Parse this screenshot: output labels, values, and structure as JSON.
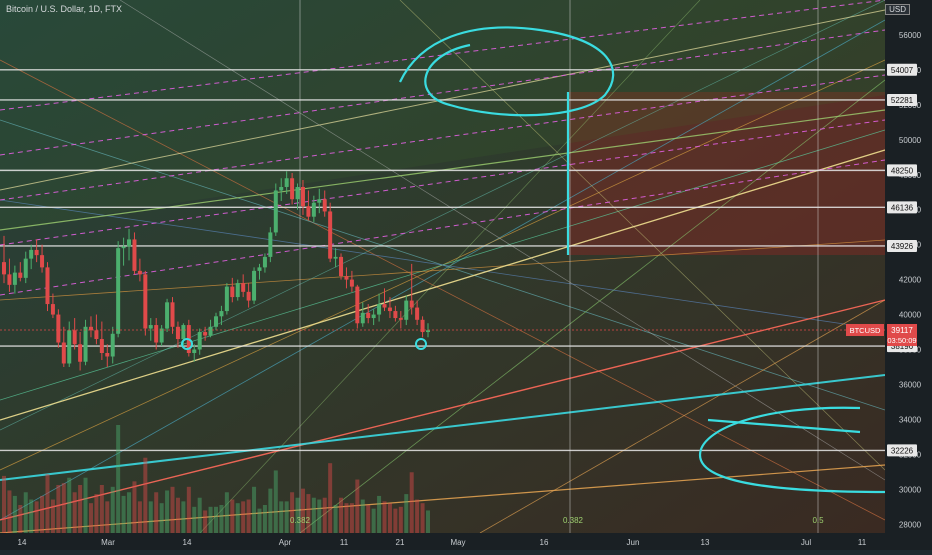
{
  "header": {
    "symbol_line": "Bitcoin / U.S. Dollar, 1D, FTX",
    "currency_button": "USD"
  },
  "chart_data": {
    "type": "candlestick",
    "title": "Bitcoin / U.S. Dollar, 1D, FTX",
    "ylim": [
      27500,
      58000
    ],
    "y_ticks": [
      28000,
      30000,
      32000,
      34000,
      36000,
      38000,
      40000,
      42000,
      44000,
      46000,
      48000,
      50000,
      52000,
      54000,
      56000
    ],
    "x_tick_labels": [
      "14",
      "Mar",
      "14",
      "Apr",
      "11",
      "21",
      "May",
      "16",
      "Jun",
      "13",
      "Jul",
      "11"
    ],
    "price_labels": [
      {
        "value": 54007,
        "text": "54007"
      },
      {
        "value": 52281,
        "text": "52281"
      },
      {
        "value": 48250,
        "text": "48250"
      },
      {
        "value": 46136,
        "text": "46136"
      },
      {
        "value": 43926,
        "text": "43926"
      },
      {
        "value": 38196,
        "text": "38196"
      },
      {
        "value": 32226,
        "text": "32226"
      }
    ],
    "last_price": {
      "symbol": "BTCUSD",
      "value": 39117,
      "countdown": "03:50:09"
    },
    "fib_labels": [
      "0.382",
      "0.382",
      "0.5"
    ],
    "candles": [
      {
        "o": 43000,
        "h": 44500,
        "l": 41800,
        "c": 42300
      },
      {
        "o": 42300,
        "h": 43200,
        "l": 41300,
        "c": 41700
      },
      {
        "o": 41700,
        "h": 42800,
        "l": 41200,
        "c": 42400
      },
      {
        "o": 42400,
        "h": 43000,
        "l": 41900,
        "c": 42100
      },
      {
        "o": 42100,
        "h": 43600,
        "l": 41800,
        "c": 43200
      },
      {
        "o": 43200,
        "h": 44000,
        "l": 42600,
        "c": 43700
      },
      {
        "o": 43700,
        "h": 44300,
        "l": 43000,
        "c": 43400
      },
      {
        "o": 43400,
        "h": 44000,
        "l": 42400,
        "c": 42700
      },
      {
        "o": 42700,
        "h": 43000,
        "l": 40200,
        "c": 40600
      },
      {
        "o": 40600,
        "h": 41200,
        "l": 39800,
        "c": 40000
      },
      {
        "o": 40000,
        "h": 40300,
        "l": 38100,
        "c": 38400
      },
      {
        "o": 38400,
        "h": 39300,
        "l": 37000,
        "c": 37200
      },
      {
        "o": 37200,
        "h": 39600,
        "l": 37000,
        "c": 39100
      },
      {
        "o": 39100,
        "h": 39800,
        "l": 38000,
        "c": 38300
      },
      {
        "o": 38300,
        "h": 39000,
        "l": 36800,
        "c": 37300
      },
      {
        "o": 37300,
        "h": 39700,
        "l": 37100,
        "c": 39300
      },
      {
        "o": 39300,
        "h": 39900,
        "l": 38700,
        "c": 39100
      },
      {
        "o": 39100,
        "h": 40000,
        "l": 38300,
        "c": 38600
      },
      {
        "o": 38600,
        "h": 39600,
        "l": 37400,
        "c": 37800
      },
      {
        "o": 37800,
        "h": 38300,
        "l": 37000,
        "c": 37600
      },
      {
        "o": 37600,
        "h": 39300,
        "l": 37200,
        "c": 38900
      },
      {
        "o": 38900,
        "h": 44200,
        "l": 38700,
        "c": 43800
      },
      {
        "o": 43800,
        "h": 44400,
        "l": 42800,
        "c": 43900
      },
      {
        "o": 43900,
        "h": 44900,
        "l": 43100,
        "c": 44300
      },
      {
        "o": 44300,
        "h": 44700,
        "l": 42300,
        "c": 42500
      },
      {
        "o": 42500,
        "h": 43200,
        "l": 41900,
        "c": 42300
      },
      {
        "o": 42300,
        "h": 42500,
        "l": 38800,
        "c": 39200
      },
      {
        "o": 39200,
        "h": 39800,
        "l": 38500,
        "c": 39400
      },
      {
        "o": 39400,
        "h": 39800,
        "l": 38000,
        "c": 38400
      },
      {
        "o": 38400,
        "h": 39400,
        "l": 38200,
        "c": 39200
      },
      {
        "o": 39200,
        "h": 40900,
        "l": 39000,
        "c": 40700
      },
      {
        "o": 40700,
        "h": 41000,
        "l": 38900,
        "c": 39300
      },
      {
        "o": 39300,
        "h": 39600,
        "l": 38100,
        "c": 38600
      },
      {
        "o": 38600,
        "h": 39500,
        "l": 38200,
        "c": 39400
      },
      {
        "o": 39400,
        "h": 39700,
        "l": 37600,
        "c": 37800
      },
      {
        "o": 37800,
        "h": 38300,
        "l": 37300,
        "c": 38000
      },
      {
        "o": 38000,
        "h": 39200,
        "l": 37700,
        "c": 39000
      },
      {
        "o": 39000,
        "h": 39300,
        "l": 38500,
        "c": 38800
      },
      {
        "o": 38800,
        "h": 39700,
        "l": 38700,
        "c": 39300
      },
      {
        "o": 39300,
        "h": 40100,
        "l": 39100,
        "c": 39900
      },
      {
        "o": 39900,
        "h": 40500,
        "l": 39400,
        "c": 40200
      },
      {
        "o": 40200,
        "h": 41800,
        "l": 40000,
        "c": 41600
      },
      {
        "o": 41600,
        "h": 42100,
        "l": 40700,
        "c": 41000
      },
      {
        "o": 41000,
        "h": 42000,
        "l": 40800,
        "c": 41800
      },
      {
        "o": 41800,
        "h": 42300,
        "l": 41000,
        "c": 41300
      },
      {
        "o": 41300,
        "h": 41800,
        "l": 40400,
        "c": 40800
      },
      {
        "o": 40800,
        "h": 42700,
        "l": 40600,
        "c": 42500
      },
      {
        "o": 42500,
        "h": 42900,
        "l": 42000,
        "c": 42700
      },
      {
        "o": 42700,
        "h": 43500,
        "l": 42400,
        "c": 43300
      },
      {
        "o": 43300,
        "h": 45000,
        "l": 43000,
        "c": 44700
      },
      {
        "o": 44700,
        "h": 47500,
        "l": 44500,
        "c": 47100
      },
      {
        "o": 47100,
        "h": 47800,
        "l": 46500,
        "c": 47300
      },
      {
        "o": 47300,
        "h": 48200,
        "l": 46900,
        "c": 47800
      },
      {
        "o": 47800,
        "h": 48100,
        "l": 46300,
        "c": 46600
      },
      {
        "o": 46600,
        "h": 47500,
        "l": 46000,
        "c": 47300
      },
      {
        "o": 47300,
        "h": 47700,
        "l": 45700,
        "c": 46200
      },
      {
        "o": 46200,
        "h": 47100,
        "l": 45400,
        "c": 45600
      },
      {
        "o": 45600,
        "h": 46800,
        "l": 45300,
        "c": 46400
      },
      {
        "o": 46400,
        "h": 47200,
        "l": 45800,
        "c": 46600
      },
      {
        "o": 46600,
        "h": 47100,
        "l": 45600,
        "c": 45900
      },
      {
        "o": 45900,
        "h": 46400,
        "l": 43000,
        "c": 43200
      },
      {
        "o": 43200,
        "h": 43800,
        "l": 42700,
        "c": 43300
      },
      {
        "o": 43300,
        "h": 43500,
        "l": 42000,
        "c": 42200
      },
      {
        "o": 42200,
        "h": 42700,
        "l": 41500,
        "c": 42000
      },
      {
        "o": 42000,
        "h": 42500,
        "l": 41300,
        "c": 41600
      },
      {
        "o": 41600,
        "h": 41700,
        "l": 39200,
        "c": 39500
      },
      {
        "o": 39500,
        "h": 40700,
        "l": 39300,
        "c": 40100
      },
      {
        "o": 40100,
        "h": 40600,
        "l": 39500,
        "c": 39800
      },
      {
        "o": 39800,
        "h": 40300,
        "l": 39400,
        "c": 40000
      },
      {
        "o": 40000,
        "h": 41200,
        "l": 39600,
        "c": 40600
      },
      {
        "o": 40600,
        "h": 41500,
        "l": 40200,
        "c": 40400
      },
      {
        "o": 40400,
        "h": 41000,
        "l": 39800,
        "c": 40200
      },
      {
        "o": 40200,
        "h": 40500,
        "l": 39600,
        "c": 39800
      },
      {
        "o": 39800,
        "h": 40200,
        "l": 39200,
        "c": 39700
      },
      {
        "o": 39700,
        "h": 41100,
        "l": 39400,
        "c": 40800
      },
      {
        "o": 40800,
        "h": 42900,
        "l": 40000,
        "c": 40400
      },
      {
        "o": 40400,
        "h": 40800,
        "l": 39400,
        "c": 39700
      },
      {
        "o": 39700,
        "h": 39900,
        "l": 38700,
        "c": 39000
      },
      {
        "o": 39000,
        "h": 39500,
        "l": 38700,
        "c": 39100
      }
    ]
  }
}
